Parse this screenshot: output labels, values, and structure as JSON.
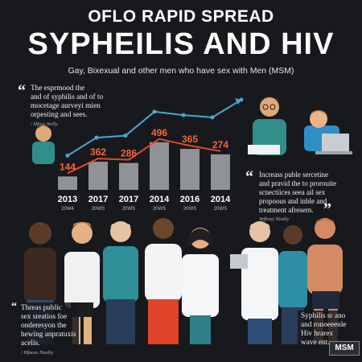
{
  "header": {
    "kicker": "OFLO RAPID SPREAD",
    "headline": "SYPHEILIS AND HIV",
    "subtitle": "Gay, Bixexual and other men who have sex with Men (MSM)"
  },
  "quotes": {
    "top_left": {
      "text": [
        "The esprmood the",
        "and of syphilis and of to",
        "mocetage aurveyi mien",
        "orpesting and sees."
      ],
      "source": "/ Hfoss Nelly"
    },
    "middle_right": {
      "text": [
        "Increass puble sercetine",
        "and pravid the to prorouite",
        "scnectiices seea ail sex",
        "propoous and inble and",
        "treatment afresern."
      ],
      "source": "Yeftooy Nealiy"
    },
    "bottom_left": {
      "text": [
        "Threas public",
        "sex sreatios foe",
        "onderesyon the",
        "hewing anpratuxis",
        "acelis."
      ],
      "source": "/ Hfaoss Nealiy"
    },
    "bottom_right": {
      "text": [
        "Syphilis sr ano",
        "and ronoeeenle",
        "Hiv hrarex",
        "wave ent."
      ]
    }
  },
  "chart_data": {
    "type": "bar",
    "categories": [
      "2013",
      "2017",
      "2017",
      "2014",
      "2016",
      "2014"
    ],
    "sublabels": [
      "20W4",
      "20WS",
      "20WS",
      "20WS",
      "20WS",
      "20WS"
    ],
    "values": [
      144,
      362,
      286,
      496,
      365,
      274
    ],
    "bar_color": "#8f9296",
    "label_color": "#f5663b",
    "last_label_color": "#f5663b",
    "trend_colors": {
      "upper": "#4aa8d0",
      "lower": "#e8472e"
    }
  },
  "badge": {
    "label": "MSM"
  }
}
